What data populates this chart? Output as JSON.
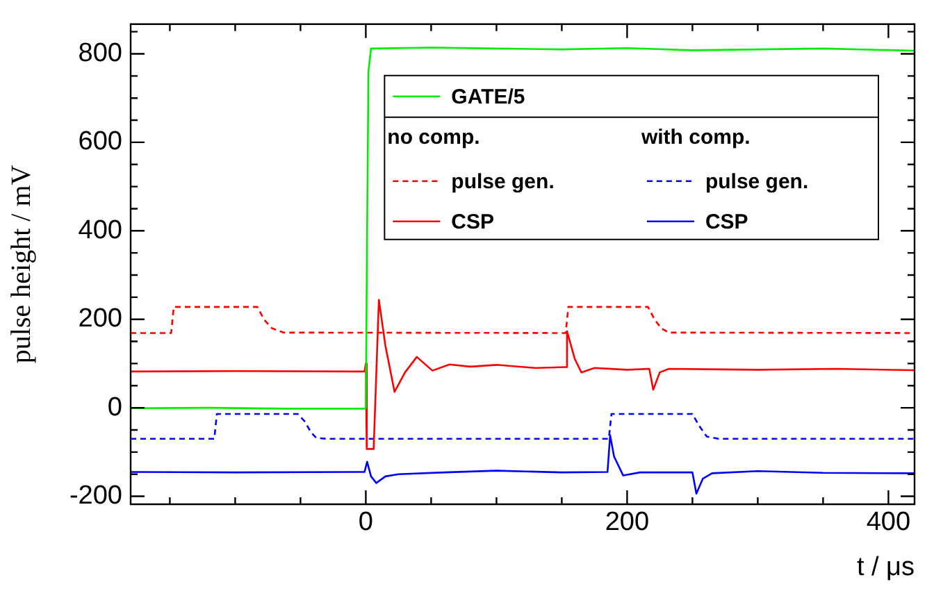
{
  "chart_data": {
    "type": "line",
    "xlabel": "t / μs",
    "ylabel": "pulse height / mV",
    "annotations": [
      "no comp.",
      "with comp."
    ],
    "xlim": [
      -180,
      420
    ],
    "ylim": [
      -218,
      867
    ],
    "xticks": [
      {
        "value": -150,
        "label": null
      },
      {
        "value": -100,
        "label": null
      },
      {
        "value": -50,
        "label": null
      },
      0,
      {
        "value": 50,
        "label": null
      },
      {
        "value": 100,
        "label": null
      },
      {
        "value": 150,
        "label": null
      },
      200,
      {
        "value": 250,
        "label": null
      },
      {
        "value": 300,
        "label": null
      },
      {
        "value": 350,
        "label": null
      },
      400
    ],
    "yticks": [
      -200,
      {
        "value": -150,
        "label": null
      },
      {
        "value": -100,
        "label": null
      },
      {
        "value": -50,
        "label": null
      },
      0,
      {
        "value": 50,
        "label": null
      },
      {
        "value": 100,
        "label": null
      },
      {
        "value": 150,
        "label": null
      },
      200,
      {
        "value": 250,
        "label": null
      },
      {
        "value": 300,
        "label": null
      },
      {
        "value": 350,
        "label": null
      },
      400,
      {
        "value": 450,
        "label": null
      },
      {
        "value": 500,
        "label": null
      },
      {
        "value": 550,
        "label": null
      },
      600,
      {
        "value": 650,
        "label": null
      },
      {
        "value": 700,
        "label": null
      },
      {
        "value": 750,
        "label": null
      },
      800,
      {
        "value": 850,
        "label": null
      }
    ],
    "grid": false,
    "legend": "top right",
    "marker": "none",
    "series": [
      {
        "name": "GATE/5",
        "color": "#00ee00",
        "line_style": "solid",
        "x": [
          -180,
          -120,
          -60,
          -1,
          0,
          1,
          2,
          4,
          50,
          100,
          150,
          200,
          250,
          300,
          350,
          420
        ],
        "values": [
          -1,
          0,
          -2,
          -2,
          0,
          400,
          760,
          812,
          814,
          812,
          810,
          813,
          808,
          810,
          812,
          807
        ]
      },
      {
        "name": "pulse gen.",
        "color": "#ff0000",
        "line_style": "dashed",
        "x": [
          -180,
          -149,
          -147,
          -83,
          -78,
          -72,
          -63,
          153,
          155,
          216,
          221,
          226,
          232,
          420
        ],
        "values": [
          169,
          169,
          228,
          228,
          200,
          180,
          170,
          169,
          228,
          228,
          200,
          180,
          170,
          169
        ]
      },
      {
        "name": "CSP",
        "color": "#ff0000",
        "line_style": "solid",
        "x": [
          -180,
          -100,
          -1,
          0,
          0.7,
          6,
          10,
          15,
          22,
          30,
          39,
          51,
          64,
          80,
          100,
          130,
          153,
          154,
          160,
          165,
          175,
          200,
          217,
          220,
          225,
          232,
          300,
          360,
          420
        ],
        "values": [
          82,
          83,
          82,
          100,
          -93,
          -93,
          244,
          140,
          36,
          80,
          115,
          84,
          98,
          93,
          97,
          90,
          92,
          173,
          110,
          80,
          90,
          86,
          88,
          41,
          80,
          88,
          86,
          88,
          85
        ]
      },
      {
        "name": "pulse gen.",
        "color": "#0000ff",
        "line_style": "dashed",
        "x": [
          -180,
          -116,
          -114,
          -52,
          -47,
          -42,
          -38,
          -30,
          186,
          188,
          250,
          255,
          261,
          270,
          420
        ],
        "values": [
          -70,
          -70,
          -14,
          -14,
          -30,
          -55,
          -68,
          -70,
          -70,
          -14,
          -14,
          -40,
          -65,
          -70,
          -70
        ]
      },
      {
        "name": "CSP",
        "color": "#0000ff",
        "line_style": "solid",
        "x": [
          -180,
          -100,
          -1,
          1,
          4,
          8,
          15,
          25,
          60,
          100,
          150,
          185,
          187,
          190,
          197,
          210,
          250,
          253,
          258,
          265,
          300,
          350,
          420
        ],
        "values": [
          -145,
          -146,
          -145,
          -122,
          -155,
          -170,
          -155,
          -150,
          -146,
          -142,
          -146,
          -145,
          -62,
          -110,
          -153,
          -146,
          -146,
          -194,
          -160,
          -148,
          -143,
          -147,
          -148
        ]
      }
    ]
  }
}
